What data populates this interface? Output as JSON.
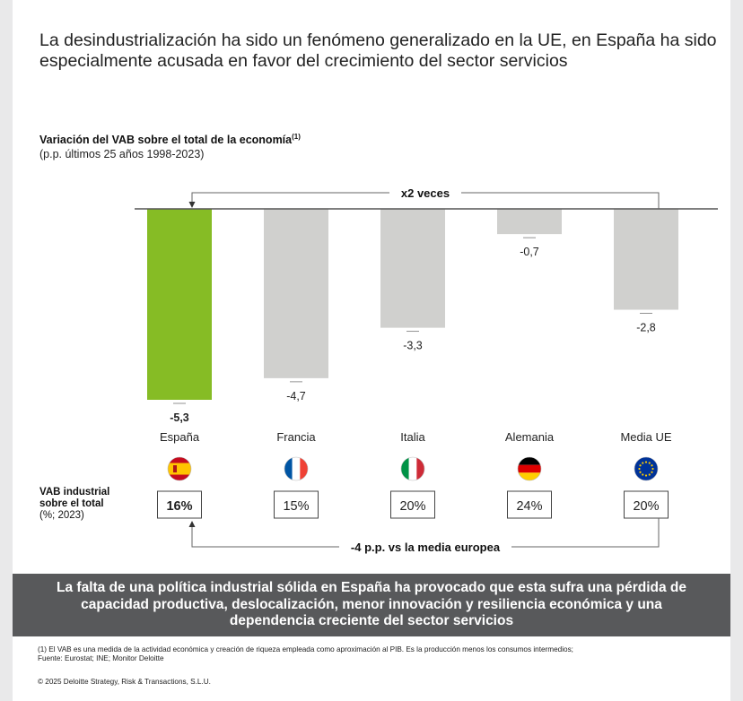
{
  "title": "La desindustrialización ha sido un fenómeno generalizado en la UE, en España ha sido especialmente acusada en favor del crecimiento del sector servicios",
  "chart_data": {
    "type": "bar",
    "title": "Variación del VAB sobre el total de la economía",
    "title_sup": "(1)",
    "subtitle": "(p.p. últimos 25 años 1998-2023)",
    "categories": [
      "España",
      "Francia",
      "Italia",
      "Alemania",
      "Media UE"
    ],
    "values": [
      -5.3,
      -4.7,
      -3.3,
      -0.7,
      -2.8
    ],
    "value_labels": [
      "-5,3",
      "-4,7",
      "-3,3",
      "-0,7",
      "-2,8"
    ],
    "ylim": [
      -5.3,
      0
    ],
    "highlight_index": 0,
    "colors": {
      "highlight": "#86bc25",
      "default": "#d0d0ce",
      "axis": "#555555",
      "connector": "#666666",
      "box_border": "#444444"
    },
    "flags": [
      "spain-flag-icon",
      "france-flag-icon",
      "italy-flag-icon",
      "germany-flag-icon",
      "eu-flag-icon"
    ],
    "top_annotation": "x2 veces",
    "share_label": [
      "VAB industrial",
      "sobre el total"
    ],
    "share_sublabel": "(%; 2023)",
    "shares": [
      "16%",
      "15%",
      "20%",
      "24%",
      "20%"
    ],
    "bottom_annotation": "-4 p.p. vs la media europea",
    "legend": "none",
    "grid": false
  },
  "banner": "La falta de una política industrial sólida en España ha provocado que esta sufra una pérdida de capacidad productiva, deslocalización, menor innovación y resiliencia económica y una dependencia creciente del sector servicios",
  "footnote1": "(1) El VAB es una medida de la actividad económica y creación de riqueza empleada como aproximación al PIB. Es la producción menos los consumos intermedios;",
  "footnote2": "Fuente: Eurostat; INE; Monitor Deloitte",
  "copyright": "© 2025 Deloitte Strategy, Risk & Transactions, S.L.U."
}
